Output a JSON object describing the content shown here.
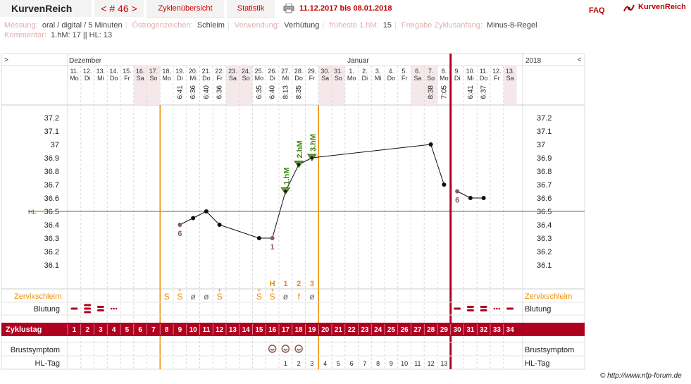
{
  "header": {
    "app_title": "KurvenReich",
    "cycle_nav": "< # 46 >",
    "tab_cycle_overview": "Zyklenübersicht",
    "tab_statistics": "Statistik",
    "date_range": "11.12.2017 bis 08.01.2018",
    "faq": "FAQ",
    "brand_right": "KurvenReich"
  },
  "info": {
    "messung_label": "Messung:",
    "messung_value": "oral / digital / 5 Minuten",
    "oestrogen_label": "Östrogenzeichen:",
    "oestrogen_value": "Schleim",
    "verwendung_label": "Verwendung:",
    "verwendung_value": "Verhütung",
    "frueheste_label": "früheste 1.hM:",
    "frueheste_value": "15",
    "freigabe_label": "Freigabe Zyklusanfang:",
    "freigabe_value": "Minus-8-Regel",
    "kommentar_label": "Kommentar:",
    "kommentar_value": "1.hM: 17 || HL: 13"
  },
  "chart": {
    "nav_left": ">",
    "nav_right": "<",
    "month_dec": "Dezember",
    "month_jan": "Januar",
    "year": "2018",
    "days": [
      {
        "d": "11.",
        "w": "Mo",
        "t": "",
        "we": false
      },
      {
        "d": "12.",
        "w": "Di",
        "t": "",
        "we": false
      },
      {
        "d": "13.",
        "w": "Mi",
        "t": "",
        "we": false
      },
      {
        "d": "14.",
        "w": "Do",
        "t": "",
        "we": false
      },
      {
        "d": "15.",
        "w": "Fr",
        "t": "",
        "we": false
      },
      {
        "d": "16.",
        "w": "Sa",
        "t": "",
        "we": true
      },
      {
        "d": "17.",
        "w": "So",
        "t": "",
        "we": true
      },
      {
        "d": "18.",
        "w": "Mo",
        "t": "",
        "we": false
      },
      {
        "d": "19.",
        "w": "Di",
        "t": "6:41",
        "we": false
      },
      {
        "d": "20.",
        "w": "Mi",
        "t": "6:36",
        "we": false
      },
      {
        "d": "21.",
        "w": "Do",
        "t": "6:40",
        "we": false
      },
      {
        "d": "22.",
        "w": "Fr",
        "t": "6:36",
        "we": false
      },
      {
        "d": "23.",
        "w": "Sa",
        "t": "",
        "we": true
      },
      {
        "d": "24.",
        "w": "So",
        "t": "",
        "we": true
      },
      {
        "d": "25.",
        "w": "Mo",
        "t": "6:35",
        "we": false
      },
      {
        "d": "26.",
        "w": "Di",
        "t": "6:40",
        "we": false
      },
      {
        "d": "27.",
        "w": "Mi",
        "t": "8:13",
        "we": false
      },
      {
        "d": "28.",
        "w": "Do",
        "t": "8:35",
        "we": false
      },
      {
        "d": "29.",
        "w": "Fr",
        "t": "",
        "we": false
      },
      {
        "d": "30.",
        "w": "Sa",
        "t": "",
        "we": true
      },
      {
        "d": "31.",
        "w": "So",
        "t": "",
        "we": true
      },
      {
        "d": "1.",
        "w": "Mo",
        "t": "",
        "we": false
      },
      {
        "d": "2.",
        "w": "Di",
        "t": "",
        "we": false
      },
      {
        "d": "3.",
        "w": "Mi",
        "t": "",
        "we": false
      },
      {
        "d": "4.",
        "w": "Do",
        "t": "",
        "we": false
      },
      {
        "d": "5.",
        "w": "Fr",
        "t": "",
        "we": false
      },
      {
        "d": "6.",
        "w": "Sa",
        "t": "",
        "we": true
      },
      {
        "d": "7.",
        "w": "So",
        "t": "8:38",
        "we": true
      },
      {
        "d": "8.",
        "w": "Mo",
        "t": "7:05",
        "we": false
      },
      {
        "d": "9.",
        "w": "Di",
        "t": "",
        "we": false
      },
      {
        "d": "10.",
        "w": "Mi",
        "t": "6:41",
        "we": false
      },
      {
        "d": "11.",
        "w": "Do",
        "t": "6:37",
        "we": false
      },
      {
        "d": "12.",
        "w": "Fr",
        "t": "",
        "we": false
      },
      {
        "d": "13.",
        "w": "Sa",
        "t": "",
        "we": true
      }
    ],
    "y_ticks": [
      "37.2",
      "37.1",
      "37",
      "36.9",
      "36.8",
      "36.7",
      "36.6",
      "36.5",
      "36.4",
      "36.3",
      "36.2",
      "36.1"
    ],
    "hl_label": "HL",
    "hl_value": 36.5,
    "temps": [
      {
        "i": 8,
        "v": 36.4,
        "excl": true,
        "lbl": "6"
      },
      {
        "i": 9,
        "v": 36.45,
        "excl": false,
        "lbl": ""
      },
      {
        "i": 10,
        "v": 36.5,
        "excl": false,
        "lbl": ""
      },
      {
        "i": 11,
        "v": 36.4,
        "excl": false,
        "lbl": ""
      },
      {
        "i": 14,
        "v": 36.3,
        "excl": false,
        "lbl": ""
      },
      {
        "i": 15,
        "v": 36.3,
        "excl": true,
        "lbl": "1"
      },
      {
        "i": 16,
        "v": 36.65,
        "excl": false,
        "lbl": "",
        "hm": "1.hM"
      },
      {
        "i": 17,
        "v": 36.85,
        "excl": false,
        "lbl": "",
        "hm": "2.hM"
      },
      {
        "i": 18,
        "v": 36.9,
        "excl": false,
        "lbl": "",
        "hm": "3.hM"
      },
      {
        "i": 27,
        "v": 37.0,
        "excl": false,
        "lbl": ""
      },
      {
        "i": 28,
        "v": 36.7,
        "excl": false,
        "lbl": ""
      },
      {
        "i": 29,
        "v": 36.65,
        "excl": true,
        "lbl": "6"
      },
      {
        "i": 30,
        "v": 36.6,
        "excl": false,
        "lbl": ""
      },
      {
        "i": 31,
        "v": 36.6,
        "excl": false,
        "lbl": ""
      }
    ],
    "peak_marks": [
      {
        "i": 15,
        "t": "H"
      },
      {
        "i": 16,
        "t": "1"
      },
      {
        "i": 17,
        "t": "2"
      },
      {
        "i": 18,
        "t": "3"
      }
    ],
    "mucus_label": "Zervixschleim",
    "mucus": [
      {
        "i": 7,
        "t": "S",
        "plus": false,
        "col": "#e08a00"
      },
      {
        "i": 8,
        "t": "S",
        "plus": true,
        "col": "#e08a00"
      },
      {
        "i": 9,
        "t": "ø",
        "plus": false,
        "col": "#666"
      },
      {
        "i": 10,
        "t": "ø",
        "plus": false,
        "col": "#666"
      },
      {
        "i": 11,
        "t": "S",
        "plus": true,
        "col": "#e08a00"
      },
      {
        "i": 14,
        "t": "S",
        "plus": true,
        "col": "#e08a00"
      },
      {
        "i": 15,
        "t": "S",
        "plus": true,
        "col": "#e08a00"
      },
      {
        "i": 16,
        "t": "ø",
        "plus": false,
        "col": "#666"
      },
      {
        "i": 17,
        "t": "f",
        "plus": false,
        "col": "#e08a00"
      },
      {
        "i": 18,
        "t": "ø",
        "plus": false,
        "col": "#666"
      }
    ],
    "bleeding_label": "Blutung",
    "bleeding": [
      {
        "i": 0,
        "lvl": 1
      },
      {
        "i": 1,
        "lvl": 3
      },
      {
        "i": 2,
        "lvl": 2
      },
      {
        "i": 3,
        "lvl": 0
      },
      {
        "i": 29,
        "lvl": 1
      },
      {
        "i": 30,
        "lvl": 2
      },
      {
        "i": 31,
        "lvl": 2
      },
      {
        "i": 32,
        "lvl": 0
      },
      {
        "i": 33,
        "lvl": 1
      }
    ],
    "cycle_day_label": "Zyklustag",
    "cycle_days": [
      "1",
      "2",
      "3",
      "4",
      "5",
      "6",
      "7",
      "8",
      "9",
      "10",
      "11",
      "12",
      "13",
      "14",
      "15",
      "16",
      "17",
      "18",
      "19",
      "20",
      "21",
      "22",
      "23",
      "24",
      "25",
      "26",
      "27",
      "28",
      "29",
      "30",
      "31",
      "32",
      "33",
      "34"
    ],
    "breast_label": "Brustsymptom",
    "breast_days": [
      15,
      16,
      17
    ],
    "hl_day_label": "HL-Tag",
    "hl_days": [
      "1",
      "2",
      "3",
      "4",
      "5",
      "6",
      "7",
      "8",
      "9",
      "10",
      "11",
      "12",
      "13"
    ],
    "colors": {
      "red": "#b00020",
      "orange": "#f08c00",
      "green": "#3a8a10",
      "grid": "#d8d8d8"
    }
  },
  "credit": "© http://www.nfp-forum.de"
}
